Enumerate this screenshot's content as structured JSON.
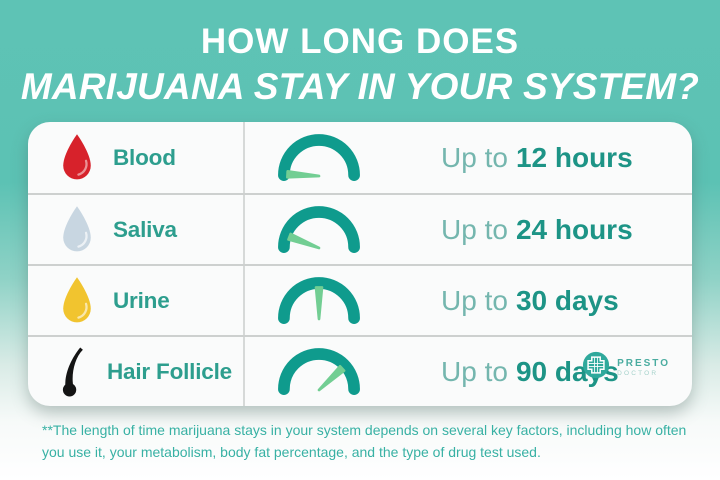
{
  "header": {
    "line1": "HOW LONG DOES",
    "line2": "MARIJUANA STAY IN YOUR SYSTEM?"
  },
  "rows": [
    {
      "label": "Blood",
      "icon": "blood-drop-icon",
      "icon_color": "#d7222b",
      "prefix": "Up to",
      "value": "12 hours",
      "needle_angle": 3
    },
    {
      "label": "Saliva",
      "icon": "saliva-drop-icon",
      "icon_color": "#c8d6e1",
      "prefix": "Up to",
      "value": "24 hours",
      "needle_angle": 21
    },
    {
      "label": "Urine",
      "icon": "urine-drop-icon",
      "icon_color": "#f1c42f",
      "prefix": "Up to",
      "value": "30 days",
      "needle_angle": 90
    },
    {
      "label": "Hair Follicle",
      "icon": "hair-strand-icon",
      "icon_color": "#141414",
      "prefix": "Up to",
      "value": "90 days",
      "needle_angle": 137
    }
  ],
  "footnote": "**The length of time marijuana stays in your system depends on several key factors, including how often you use it, your metabolism, body fat percentage, and the type of drug test used.",
  "logo": {
    "brand": "PRESTO",
    "sub": "DOCTOR"
  },
  "colors": {
    "header_teal": "#5cc2b4",
    "card_bg": "#fafbfb",
    "label_teal": "#2d9e8e",
    "prefix_teal": "#74b6ae",
    "value_teal": "#1d9486",
    "gauge_arc": "#0f9b8d",
    "needle_green": "#72ce93",
    "separator_gray": "#cdd0cf",
    "footnote_teal": "#38b1a4",
    "logo_teal": "#2fa99c",
    "blood_red": "#d7222b",
    "saliva_blue": "#c8d6e1",
    "urine_yellow": "#f1c42f",
    "hair_black": "#141414"
  }
}
